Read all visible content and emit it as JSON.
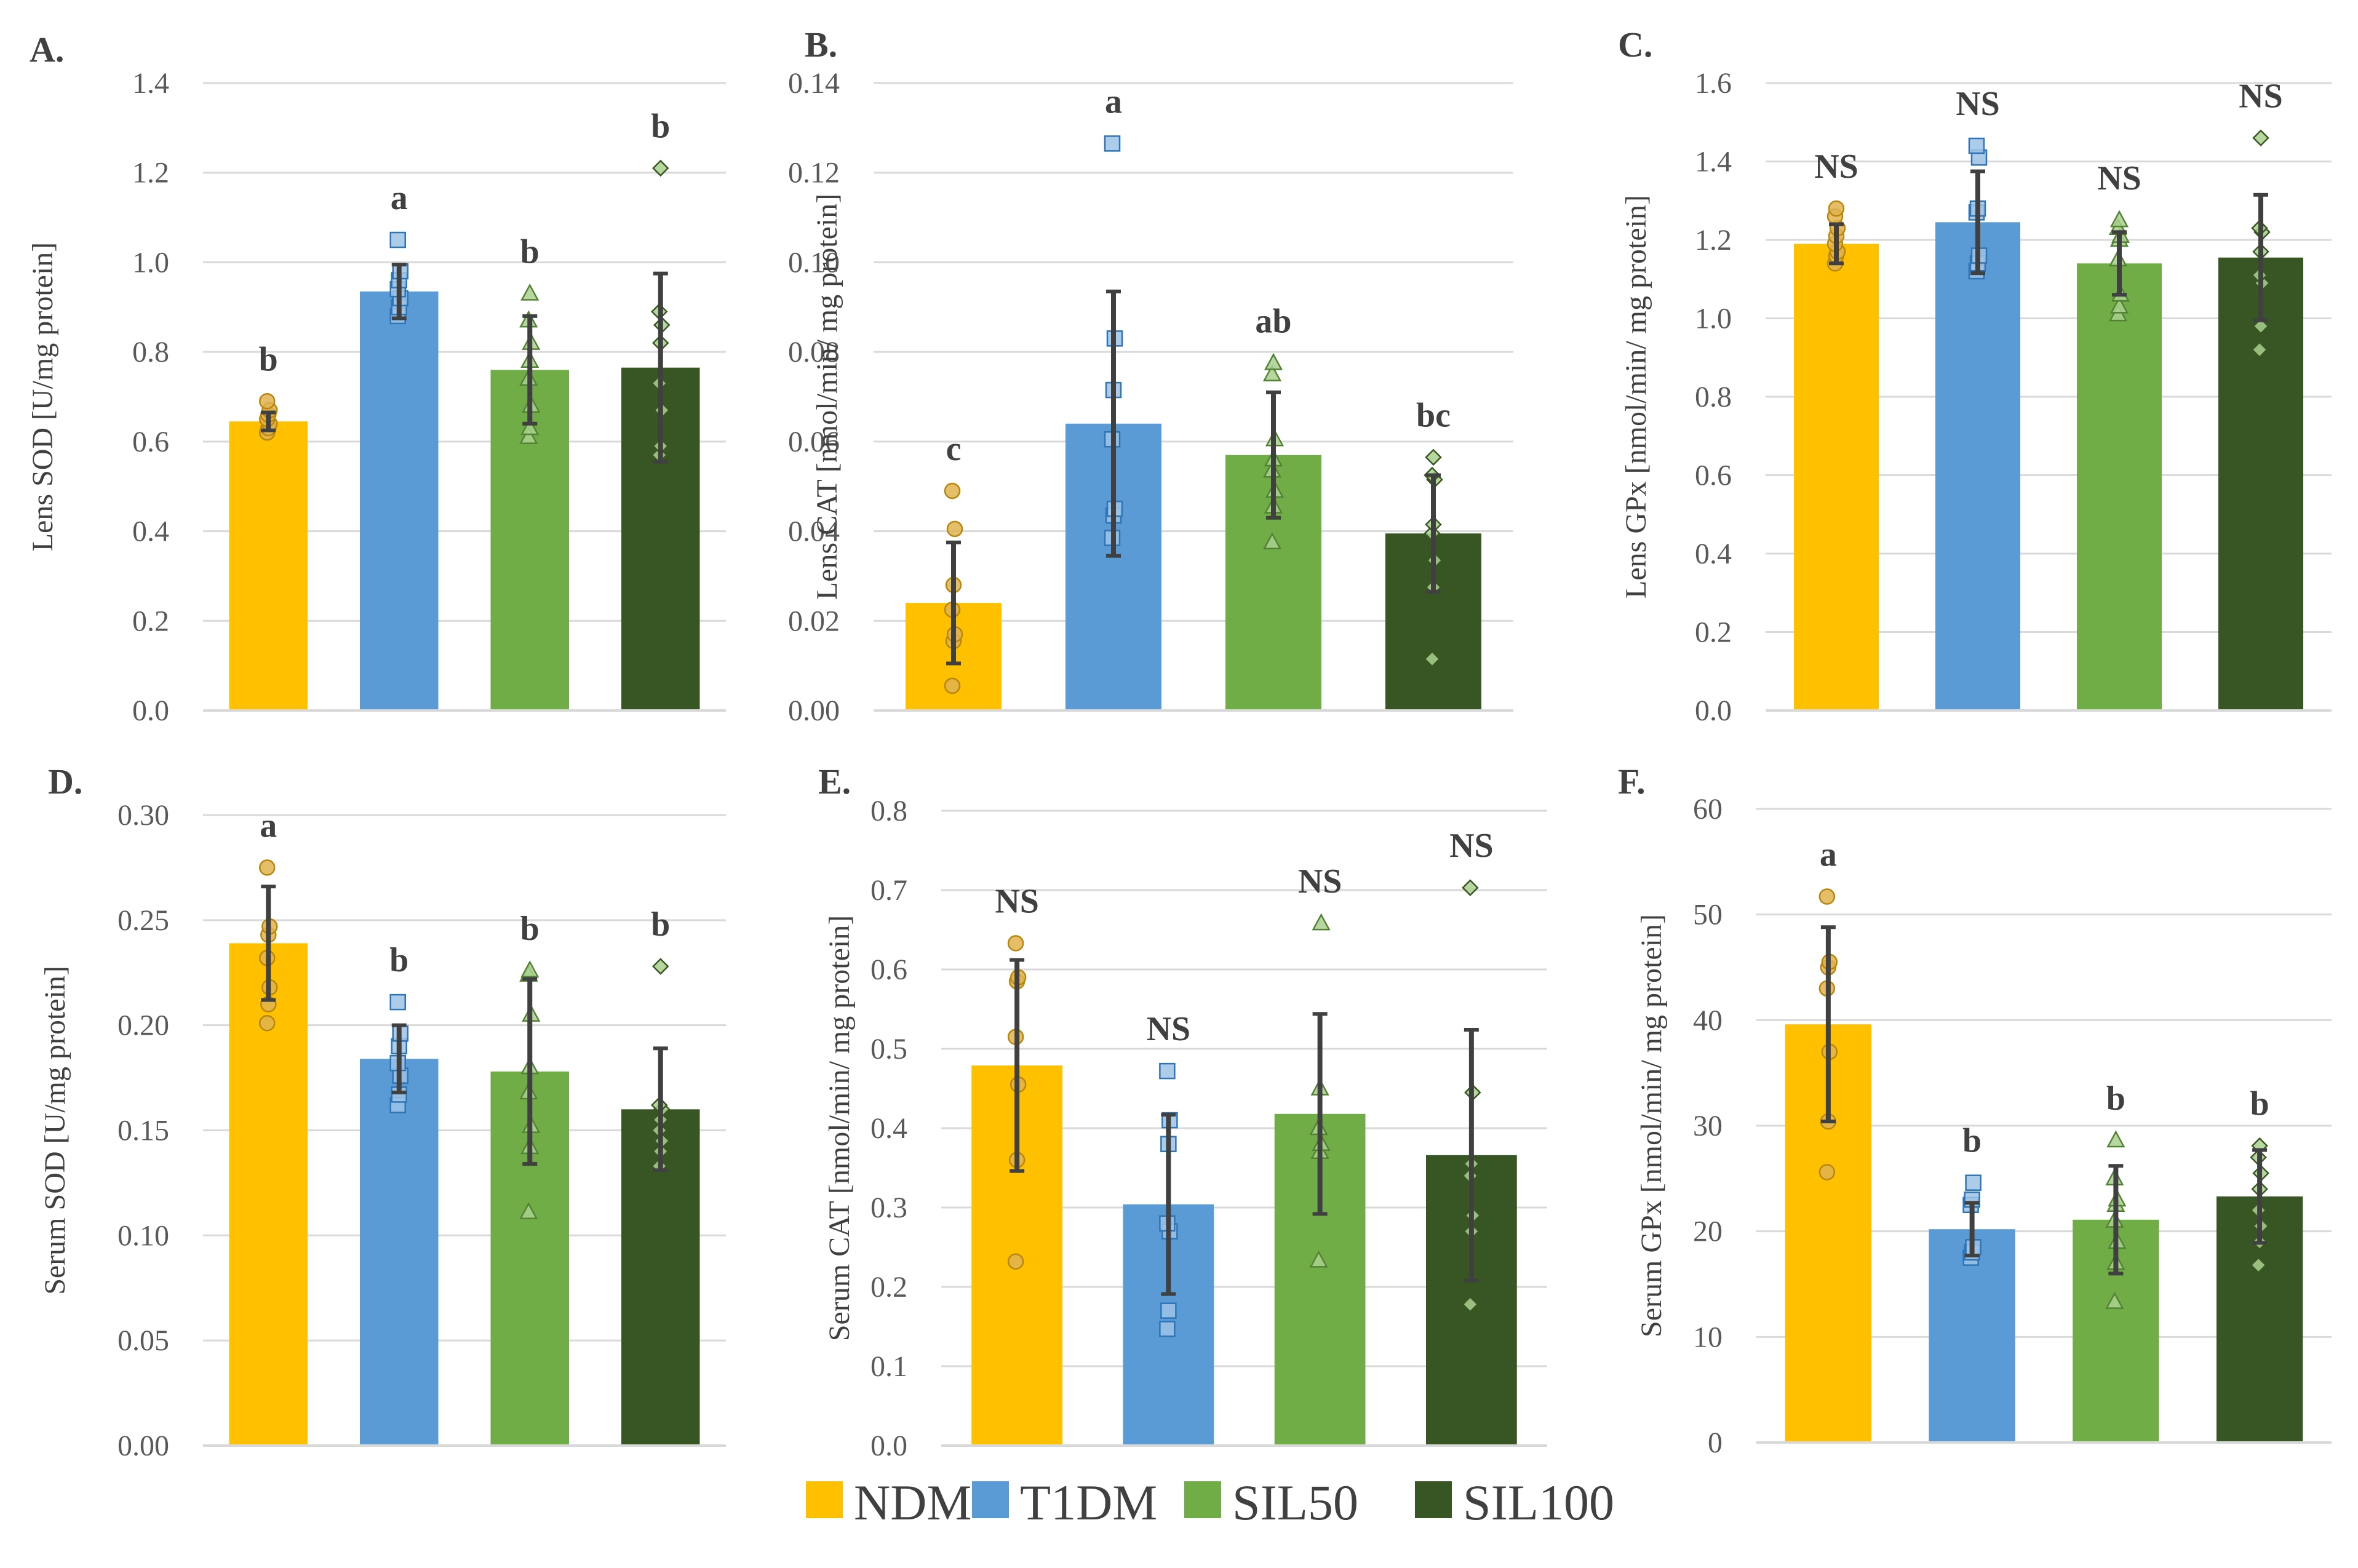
{
  "colors": {
    "NDM": "#FFC000",
    "T1DM": "#5B9BD5",
    "SIL50": "#70AD47",
    "SIL100": "#375623",
    "grid": "#D9D9D9",
    "axis": "#D9D9D9",
    "errorbar": "#404040"
  },
  "legend": [
    {
      "label": "NDM",
      "color": "#FFC000"
    },
    {
      "label": "T1DM",
      "color": "#5B9BD5"
    },
    {
      "label": "SIL50",
      "color": "#70AD47"
    },
    {
      "label": "SIL100",
      "color": "#375623"
    }
  ],
  "chart_data": [
    {
      "panel": "A.",
      "type": "bar",
      "ylabel": "Lens SOD [U/mg protein]",
      "ylim": [
        0,
        1.4
      ],
      "yticks": [
        "0.0",
        "0.2",
        "0.4",
        "0.6",
        "0.8",
        "1.0",
        "1.2",
        "1.4"
      ],
      "groups": [
        "NDM",
        "T1DM",
        "SIL50",
        "SIL100"
      ],
      "values": [
        0.645,
        0.935,
        0.76,
        0.765
      ],
      "errors": [
        0.02,
        0.06,
        0.12,
        0.21
      ],
      "labels": [
        "b",
        "a",
        "b",
        "b"
      ],
      "points": [
        [
          0.62,
          0.63,
          0.64,
          0.65,
          0.66,
          0.67,
          0.69
        ],
        [
          0.88,
          0.9,
          0.92,
          0.94,
          0.96,
          0.98,
          1.05
        ],
        [
          0.61,
          0.63,
          0.68,
          0.74,
          0.78,
          0.82,
          0.87,
          0.93
        ],
        [
          0.57,
          0.59,
          0.67,
          0.73,
          0.82,
          0.86,
          0.89,
          1.21
        ]
      ]
    },
    {
      "panel": "B.",
      "type": "bar",
      "ylabel": "Lens CAT [nmol/min/ mg protein]",
      "ylim": [
        0,
        0.14
      ],
      "yticks": [
        "0.00",
        "0.02",
        "0.04",
        "0.06",
        "0.08",
        "0.10",
        "0.12",
        "0.14"
      ],
      "groups": [
        "NDM",
        "T1DM",
        "SIL50",
        "SIL100"
      ],
      "values": [
        0.024,
        0.064,
        0.057,
        0.0395
      ],
      "errors": [
        0.0135,
        0.0295,
        0.014,
        0.013
      ],
      "labels": [
        "c",
        "a",
        "ab",
        "bc"
      ],
      "points": [
        [
          0.0055,
          0.0155,
          0.017,
          0.0225,
          0.028,
          0.0405,
          0.049
        ],
        [
          0.0385,
          0.0435,
          0.045,
          0.0605,
          0.0715,
          0.083,
          0.1265
        ],
        [
          0.0375,
          0.0455,
          0.049,
          0.0535,
          0.056,
          0.0605,
          0.075,
          0.0775
        ],
        [
          0.0115,
          0.0275,
          0.0335,
          0.0395,
          0.0415,
          0.0515,
          0.0525,
          0.0565
        ]
      ]
    },
    {
      "panel": "C.",
      "type": "bar",
      "ylabel": "Lens GPx [nmol/min/ mg protein]",
      "ylim": [
        0,
        1.6
      ],
      "yticks": [
        "0.0",
        "0.2",
        "0.4",
        "0.6",
        "0.8",
        "1.0",
        "1.2",
        "1.4",
        "1.6"
      ],
      "groups": [
        "NDM",
        "T1DM",
        "SIL50",
        "SIL100"
      ],
      "values": [
        1.19,
        1.245,
        1.14,
        1.155
      ],
      "errors": [
        0.05,
        0.13,
        0.08,
        0.16
      ],
      "labels": [
        "NS",
        "NS",
        "NS",
        "NS"
      ],
      "points": [
        [
          1.14,
          1.16,
          1.17,
          1.19,
          1.21,
          1.23,
          1.26,
          1.28
        ],
        [
          1.12,
          1.14,
          1.16,
          1.27,
          1.28,
          1.41,
          1.44
        ],
        [
          1.01,
          1.03,
          1.06,
          1.15,
          1.2,
          1.21,
          1.23,
          1.25
        ],
        [
          0.92,
          0.98,
          1.09,
          1.11,
          1.17,
          1.22,
          1.23,
          1.46
        ]
      ]
    },
    {
      "panel": "D.",
      "type": "bar",
      "ylabel": "Serum SOD [U/mg protein]",
      "ylim": [
        0,
        0.3
      ],
      "yticks": [
        "0.00",
        "0.05",
        "0.10",
        "0.15",
        "0.20",
        "0.25",
        "0.30"
      ],
      "groups": [
        "NDM",
        "T1DM",
        "SIL50",
        "SIL100"
      ],
      "values": [
        0.239,
        0.184,
        0.178,
        0.16
      ],
      "errors": [
        0.027,
        0.016,
        0.044,
        0.029
      ],
      "labels": [
        "a",
        "b",
        "b",
        "b"
      ],
      "points": [
        [
          0.201,
          0.21,
          0.218,
          0.232,
          0.243,
          0.247,
          0.275
        ],
        [
          0.162,
          0.167,
          0.176,
          0.182,
          0.19,
          0.196,
          0.211
        ],
        [
          0.111,
          0.142,
          0.152,
          0.168,
          0.18,
          0.205,
          0.224,
          0.226
        ],
        [
          0.133,
          0.14,
          0.145,
          0.15,
          0.155,
          0.16,
          0.162,
          0.228
        ]
      ]
    },
    {
      "panel": "E.",
      "type": "bar",
      "ylabel": "Serum CAT [nmol/min/ mg protein]",
      "ylim": [
        0,
        0.8
      ],
      "yticks": [
        "0.0",
        "0.1",
        "0.2",
        "0.3",
        "0.4",
        "0.5",
        "0.6",
        "0.7",
        "0.8"
      ],
      "groups": [
        "NDM",
        "T1DM",
        "SIL50",
        "SIL100"
      ],
      "values": [
        0.479,
        0.304,
        0.418,
        0.366
      ],
      "errors": [
        0.133,
        0.113,
        0.126,
        0.158
      ],
      "labels": [
        "NS",
        "NS",
        "NS",
        "NS"
      ],
      "points": [
        [
          0.232,
          0.36,
          0.455,
          0.515,
          0.585,
          0.59,
          0.633
        ],
        [
          0.147,
          0.17,
          0.27,
          0.28,
          0.38,
          0.41,
          0.472
        ],
        [
          0.233,
          0.37,
          0.38,
          0.4,
          0.45,
          0.658
        ],
        [
          0.178,
          0.27,
          0.29,
          0.34,
          0.355,
          0.445,
          0.703
        ]
      ]
    },
    {
      "panel": "F.",
      "type": "bar",
      "ylabel": "Serum GPx [nmol/min/ mg protein]",
      "ylim": [
        0,
        60
      ],
      "yticks": [
        "0",
        "10",
        "20",
        "30",
        "40",
        "50",
        "60"
      ],
      "groups": [
        "NDM",
        "T1DM",
        "SIL50",
        "SIL100"
      ],
      "values": [
        39.6,
        20.2,
        21.1,
        23.3
      ],
      "errors": [
        9.2,
        2.5,
        5.1,
        4.4
      ],
      "labels": [
        "a",
        "b",
        "b",
        "b"
      ],
      "points": [
        [
          25.6,
          30.4,
          37.0,
          43.0,
          45.0,
          45.5,
          51.7
        ],
        [
          17.5,
          18.0,
          18.5,
          22.5,
          23.0,
          24.6
        ],
        [
          13.3,
          17.0,
          19.0,
          21.0,
          22.5,
          23.0,
          25.0,
          28.6
        ],
        [
          16.8,
          19.0,
          20.5,
          22.0,
          24.0,
          25.5,
          27.0,
          28.1
        ]
      ]
    }
  ]
}
